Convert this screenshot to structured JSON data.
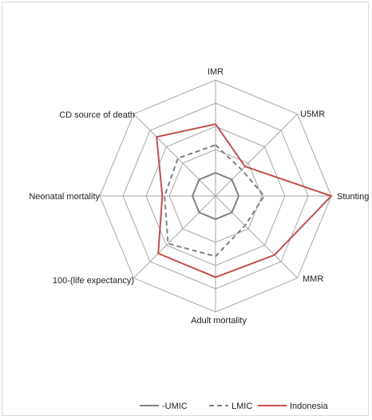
{
  "chart_data": {
    "type": "radar",
    "title": "",
    "axes": [
      "IMR",
      "U5MR",
      "Stunting",
      "MMR",
      "Adult mortality",
      "100-(life expectancy)",
      "Neonatal mortality",
      "CD source of death"
    ],
    "rmax": 5,
    "rings": 5,
    "series": [
      {
        "name": "-UMIC",
        "color": "#808080",
        "dash": "",
        "values": [
          1,
          1,
          1,
          1,
          1,
          1,
          1,
          1
        ]
      },
      {
        "name": "LMIC",
        "color": "#808080",
        "dash": "6,4",
        "values": [
          2.2,
          1.6,
          2.1,
          1.8,
          2.6,
          2.9,
          2.2,
          2.3
        ]
      },
      {
        "name": "Indonesia",
        "color": "#c0504d",
        "dash": "",
        "values": [
          3.1,
          1.8,
          5.0,
          3.6,
          3.5,
          3.5,
          2.3,
          3.6
        ]
      }
    ],
    "legend_position": "bottom"
  }
}
